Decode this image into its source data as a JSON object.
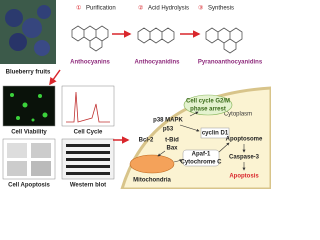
{
  "top": {
    "source": "Blueberry fruits",
    "steps": [
      {
        "number": "①",
        "label": "Purification"
      },
      {
        "number": "②",
        "label": "Acid Hydrolysis"
      },
      {
        "number": "③",
        "label": "Synthesis"
      }
    ],
    "products": [
      "Anthocyanins",
      "Anthocyanidins",
      "Pyranoanthocyanidins"
    ]
  },
  "assays": [
    "Cell Viability",
    "Cell Cycle",
    "Cell Apoptosis",
    "Western blot"
  ],
  "pathway": {
    "region": "Cytoplasm",
    "arrest": [
      "Cell cycle G2/M",
      "phase arrest"
    ],
    "p38": "p38 MAPK",
    "p53": "p53",
    "bcl2": "Bcl-2",
    "tbid": "t-Bid",
    "bax": "Bax",
    "cyclin": "cyclin D1",
    "apaf": "Apaf-1",
    "cytc": "Cytochrome C",
    "mito": "Mitochondria",
    "apoptosome": "Apoptosome",
    "caspase": "Caspase-3",
    "apoptosis": "Apoptosis"
  }
}
